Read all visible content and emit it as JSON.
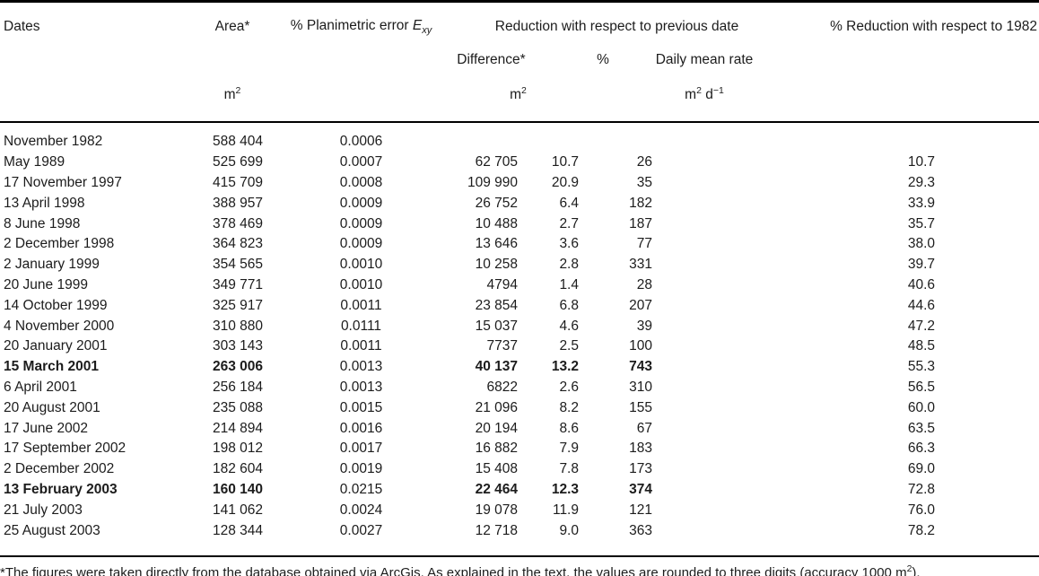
{
  "table": {
    "header": {
      "dates": "Dates",
      "area": "Area*",
      "error_prefix": "% Planimetric error ",
      "error_var": "E",
      "error_sub": "xy",
      "group": "Reduction with respect to previous date",
      "difference": "Difference*",
      "pct": "%",
      "rate": "Daily mean rate",
      "red82": "% Reduction with respect to 1982"
    },
    "units": {
      "area_base": "m",
      "area_exp": "2",
      "diff_base": "m",
      "diff_exp": "2",
      "rate_base": "m",
      "rate_exp": "2",
      "rate_base2": " d",
      "rate_exp2": "−1"
    },
    "rows": [
      {
        "date": "November 1982",
        "area": "588 404",
        "error": "0.0006",
        "diff": "",
        "pct": "",
        "rate": "",
        "red82": "",
        "bold": false
      },
      {
        "date": "May 1989",
        "area": "525 699",
        "error": "0.0007",
        "diff": "62 705",
        "pct": "10.7",
        "rate": "26",
        "red82": "10.7",
        "bold": false
      },
      {
        "date": "17 November 1997",
        "area": "415 709",
        "error": "0.0008",
        "diff": "109 990",
        "pct": "20.9",
        "rate": "35",
        "red82": "29.3",
        "bold": false
      },
      {
        "date": "13 April 1998",
        "area": "388 957",
        "error": "0.0009",
        "diff": "26 752",
        "pct": "6.4",
        "rate": "182",
        "red82": "33.9",
        "bold": false
      },
      {
        "date": "8 June 1998",
        "area": "378 469",
        "error": "0.0009",
        "diff": "10 488",
        "pct": "2.7",
        "rate": "187",
        "red82": "35.7",
        "bold": false
      },
      {
        "date": "2 December 1998",
        "area": "364 823",
        "error": "0.0009",
        "diff": "13 646",
        "pct": "3.6",
        "rate": "77",
        "red82": "38.0",
        "bold": false
      },
      {
        "date": "2 January 1999",
        "area": "354 565",
        "error": "0.0010",
        "diff": "10 258",
        "pct": "2.8",
        "rate": "331",
        "red82": "39.7",
        "bold": false
      },
      {
        "date": "20 June 1999",
        "area": "349 771",
        "error": "0.0010",
        "diff": "4794",
        "pct": "1.4",
        "rate": "28",
        "red82": "40.6",
        "bold": false
      },
      {
        "date": "14 October 1999",
        "area": "325 917",
        "error": "0.0011",
        "diff": "23 854",
        "pct": "6.8",
        "rate": "207",
        "red82": "44.6",
        "bold": false
      },
      {
        "date": "4 November 2000",
        "area": "310 880",
        "error": "0.0111",
        "diff": "15 037",
        "pct": "4.6",
        "rate": "39",
        "red82": "47.2",
        "bold": false
      },
      {
        "date": "20 January 2001",
        "area": "303 143",
        "error": "0.0011",
        "diff": "7737",
        "pct": "2.5",
        "rate": "100",
        "red82": "48.5",
        "bold": false
      },
      {
        "date": "15 March 2001",
        "area": "263 006",
        "error": "0.0013",
        "diff": "40 137",
        "pct": "13.2",
        "rate": "743",
        "red82": "55.3",
        "bold": true
      },
      {
        "date": "6 April 2001",
        "area": "256 184",
        "error": "0.0013",
        "diff": "6822",
        "pct": "2.6",
        "rate": "310",
        "red82": "56.5",
        "bold": false
      },
      {
        "date": "20 August 2001",
        "area": "235 088",
        "error": "0.0015",
        "diff": "21 096",
        "pct": "8.2",
        "rate": "155",
        "red82": "60.0",
        "bold": false
      },
      {
        "date": "17 June 2002",
        "area": "214 894",
        "error": "0.0016",
        "diff": "20 194",
        "pct": "8.6",
        "rate": "67",
        "red82": "63.5",
        "bold": false
      },
      {
        "date": "17 September 2002",
        "area": "198 012",
        "error": "0.0017",
        "diff": "16 882",
        "pct": "7.9",
        "rate": "183",
        "red82": "66.3",
        "bold": false
      },
      {
        "date": "2 December 2002",
        "area": "182 604",
        "error": "0.0019",
        "diff": "15 408",
        "pct": "7.8",
        "rate": "173",
        "red82": "69.0",
        "bold": false
      },
      {
        "date": "13 February 2003",
        "area": "160 140",
        "error": "0.0215",
        "diff": "22 464",
        "pct": "12.3",
        "rate": "374",
        "red82": "72.8",
        "bold": true
      },
      {
        "date": "21 July 2003",
        "area": "141 062",
        "error": "0.0024",
        "diff": "19 078",
        "pct": "11.9",
        "rate": "121",
        "red82": "76.0",
        "bold": false
      },
      {
        "date": "25 August 2003",
        "area": "128 344",
        "error": "0.0027",
        "diff": "12 718",
        "pct": "9.0",
        "rate": "363",
        "red82": "78.2",
        "bold": false
      }
    ],
    "footnote": {
      "before": "*The figures were taken directly from the database obtained via ArcGis. As explained in the text, the values are rounded to three digits (accuracy 1000 m",
      "sup": "2",
      "after": ")."
    }
  }
}
